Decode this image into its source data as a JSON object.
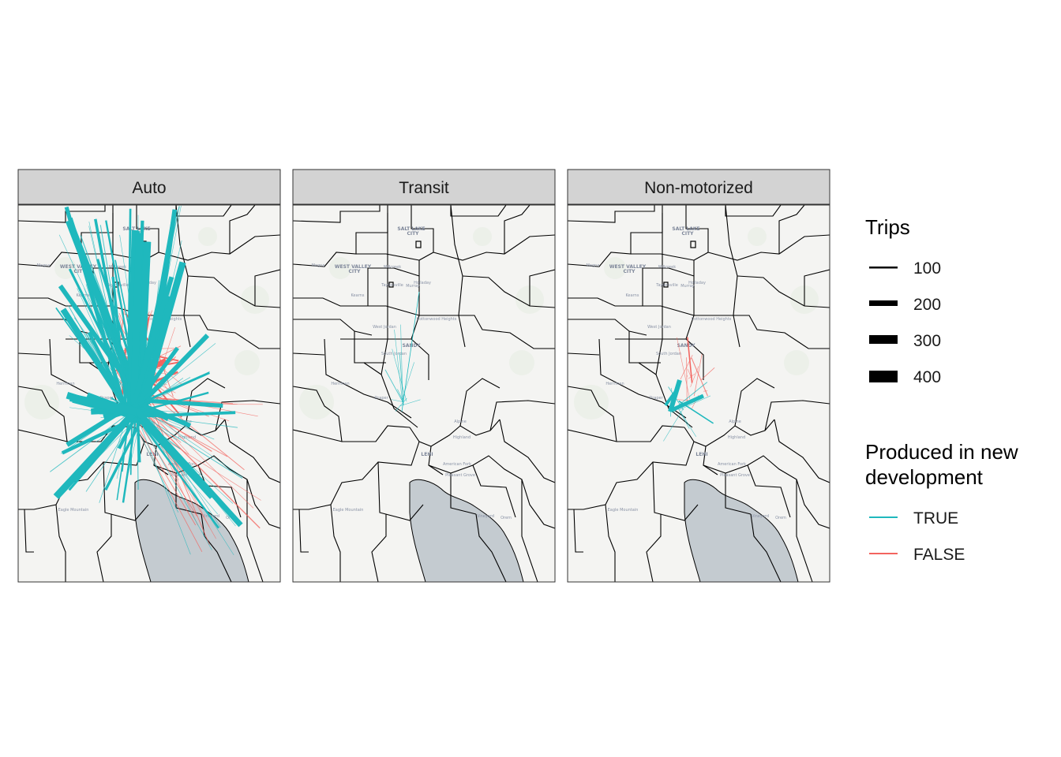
{
  "panels": [
    {
      "label": "Auto",
      "density": "high"
    },
    {
      "label": "Transit",
      "density": "low"
    },
    {
      "label": "Non-motorized",
      "density": "mid"
    }
  ],
  "basemap_labels": [
    {
      "text": "SALT LAKE",
      "big": true
    },
    {
      "text": "CITY",
      "big": true
    },
    {
      "text": "Magna"
    },
    {
      "text": "WEST VALLEY",
      "big": true
    },
    {
      "text": "CITY",
      "big": true
    },
    {
      "text": "Millcreek"
    },
    {
      "text": "Taylorsville"
    },
    {
      "text": "Murray"
    },
    {
      "text": "Holladay"
    },
    {
      "text": "Kearns"
    },
    {
      "text": "West Jordan"
    },
    {
      "text": "Cottonwood Heights"
    },
    {
      "text": "SANDY",
      "big": true
    },
    {
      "text": "South Jordan"
    },
    {
      "text": "Herriman"
    },
    {
      "text": "Draper"
    },
    {
      "text": "Alpine"
    },
    {
      "text": "Highland"
    },
    {
      "text": "LEHI",
      "big": true
    },
    {
      "text": "American Fork"
    },
    {
      "text": "Pleasant Grove"
    },
    {
      "text": "Eagle Mountain"
    },
    {
      "text": "Vineyard"
    },
    {
      "text": "Orem"
    }
  ],
  "legend": {
    "size_title": "Trips",
    "size_items": [
      {
        "label": "100",
        "value": 100
      },
      {
        "label": "200",
        "value": 200
      },
      {
        "label": "300",
        "value": 300
      },
      {
        "label": "400",
        "value": 400
      }
    ],
    "color_title_line1": "Produced in new",
    "color_title_line2": "development",
    "color_items": [
      {
        "label": "TRUE",
        "color": "#1fb8bd"
      },
      {
        "label": "FALSE",
        "color": "#f3645f"
      }
    ]
  },
  "colors": {
    "strip_bg": "#d3d3d3",
    "map_bg": "#f4f4f2",
    "lake": "#c4cbd0",
    "boundary": "#000000"
  }
}
